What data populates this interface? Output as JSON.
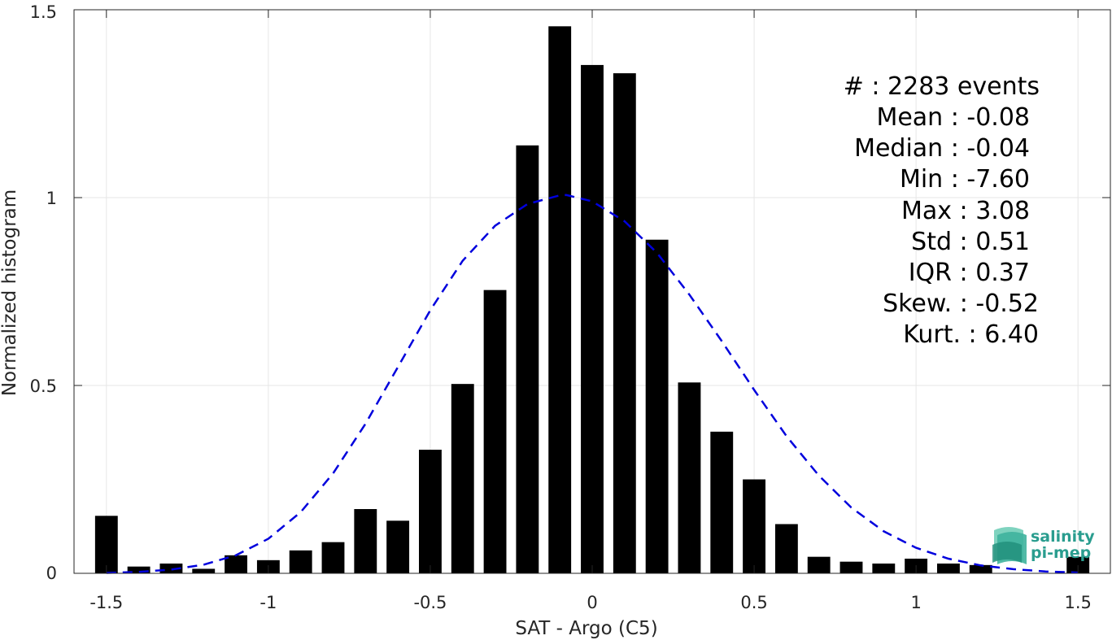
{
  "chart_data": {
    "type": "bar",
    "xlabel": "SAT - Argo (C5)",
    "ylabel": "Normalized histogram",
    "xlim": [
      -1.6,
      1.6
    ],
    "ylim": [
      0,
      1.5
    ],
    "xticks": [
      -1.5,
      -1,
      -0.5,
      0,
      0.5,
      1,
      1.5
    ],
    "xtick_labels": [
      "-1.5",
      "-1",
      "-0.5",
      "0",
      "0.5",
      "1",
      "1.5"
    ],
    "yticks": [
      0,
      0.5,
      1,
      1.5
    ],
    "ytick_labels": [
      "0",
      "0.5",
      "1",
      "1.5"
    ],
    "grid": true,
    "bar_color": "#000000",
    "bars": {
      "x": [
        -1.5,
        -1.4,
        -1.3,
        -1.2,
        -1.1,
        -1.0,
        -0.9,
        -0.8,
        -0.7,
        -0.6,
        -0.5,
        -0.4,
        -0.3,
        -0.2,
        -0.1,
        0.0,
        0.1,
        0.2,
        0.3,
        0.4,
        0.5,
        0.6,
        0.7,
        0.8,
        0.9,
        1.0,
        1.1,
        1.2,
        1.5
      ],
      "values": [
        0.153,
        0.018,
        0.026,
        0.012,
        0.048,
        0.035,
        0.061,
        0.083,
        0.171,
        0.14,
        0.329,
        0.504,
        0.754,
        1.139,
        1.456,
        1.353,
        1.331,
        0.888,
        0.508,
        0.377,
        0.25,
        0.131,
        0.044,
        0.031,
        0.026,
        0.039,
        0.026,
        0.022,
        0.044
      ]
    },
    "fit_curve": {
      "style": "dashed",
      "color": "#0000dd",
      "x": [
        -1.5,
        -1.4,
        -1.3,
        -1.2,
        -1.1,
        -1.0,
        -0.9,
        -0.8,
        -0.7,
        -0.6,
        -0.5,
        -0.4,
        -0.3,
        -0.2,
        -0.1,
        -0.08,
        0.0,
        0.1,
        0.2,
        0.3,
        0.4,
        0.5,
        0.6,
        0.7,
        0.8,
        0.9,
        1.0,
        1.1,
        1.2,
        1.3,
        1.4,
        1.5
      ],
      "y": [
        0.001,
        0.004,
        0.01,
        0.023,
        0.048,
        0.092,
        0.163,
        0.266,
        0.398,
        0.549,
        0.7,
        0.832,
        0.925,
        0.983,
        1.006,
        1.007,
        0.99,
        0.937,
        0.853,
        0.742,
        0.618,
        0.488,
        0.365,
        0.26,
        0.175,
        0.112,
        0.068,
        0.039,
        0.021,
        0.011,
        0.005,
        0.002
      ]
    },
    "stats": {
      "count": "#  : 2283 events",
      "mean": "Mean : -0.08",
      "median": "Median : -0.04",
      "min": "Min : -7.60",
      "max": "Max : 3.08",
      "std": "Std : 0.51",
      "iqr": "IQR : 0.37",
      "skew": "Skew. : -0.52",
      "kurt": "Kurt. : 6.40"
    }
  },
  "logo": {
    "line1": "salinity",
    "line2": "pi-mep"
  }
}
